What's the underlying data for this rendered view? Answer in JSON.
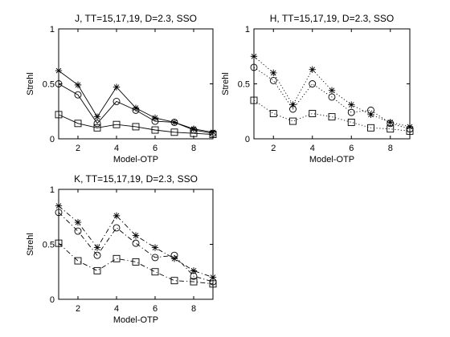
{
  "chart_data": [
    {
      "type": "line",
      "title": "J, TT=15,17,19, D=2.3, SSO",
      "xlabel": "Model-OTP",
      "ylabel": "Strehl",
      "xlim": [
        1,
        9
      ],
      "ylim": [
        0,
        1
      ],
      "xticks": [
        "2",
        "4",
        "6",
        "8"
      ],
      "yticks": [
        "0",
        "0.5",
        "1"
      ],
      "grid": false,
      "x": [
        1,
        2,
        3,
        4,
        5,
        6,
        7,
        8,
        9
      ],
      "series": [
        {
          "marker": "star",
          "line": "solid",
          "values": [
            0.62,
            0.49,
            0.2,
            0.47,
            0.28,
            0.19,
            0.15,
            0.09,
            0.06
          ]
        },
        {
          "marker": "circle",
          "line": "solid",
          "values": [
            0.5,
            0.4,
            0.14,
            0.34,
            0.26,
            0.16,
            0.15,
            0.08,
            0.05
          ]
        },
        {
          "marker": "square",
          "line": "solid",
          "values": [
            0.22,
            0.14,
            0.1,
            0.13,
            0.11,
            0.08,
            0.06,
            0.05,
            0.04
          ]
        }
      ]
    },
    {
      "type": "line",
      "title": "H, TT=15,17,19, D=2.3, SSO",
      "xlabel": "Model-OTP",
      "ylabel": "Strehl",
      "xlim": [
        1,
        9
      ],
      "ylim": [
        0,
        1
      ],
      "xticks": [
        "2",
        "4",
        "6",
        "8"
      ],
      "yticks": [
        "0",
        "0.5",
        "1"
      ],
      "grid": false,
      "x": [
        1,
        2,
        3,
        4,
        5,
        6,
        7,
        8,
        9
      ],
      "series": [
        {
          "marker": "star",
          "line": "dotted",
          "values": [
            0.75,
            0.6,
            0.31,
            0.63,
            0.44,
            0.31,
            0.22,
            0.15,
            0.11
          ]
        },
        {
          "marker": "circle",
          "line": "dotted",
          "values": [
            0.65,
            0.53,
            0.27,
            0.5,
            0.38,
            0.24,
            0.26,
            0.14,
            0.09
          ]
        },
        {
          "marker": "square",
          "line": "dotted",
          "values": [
            0.35,
            0.23,
            0.16,
            0.23,
            0.2,
            0.15,
            0.1,
            0.09,
            0.07
          ]
        }
      ]
    },
    {
      "type": "line",
      "title": "K, TT=15,17,19, D=2.3, SSO",
      "xlabel": "Model-OTP",
      "ylabel": "Strehl",
      "xlim": [
        1,
        9
      ],
      "ylim": [
        0,
        1
      ],
      "xticks": [
        "2",
        "4",
        "6",
        "8"
      ],
      "yticks": [
        "0",
        "0.5",
        "1"
      ],
      "grid": false,
      "x": [
        1,
        2,
        3,
        4,
        5,
        6,
        7,
        8,
        9
      ],
      "series": [
        {
          "marker": "star",
          "line": "dashdot",
          "values": [
            0.85,
            0.7,
            0.47,
            0.76,
            0.58,
            0.47,
            0.37,
            0.26,
            0.2
          ]
        },
        {
          "marker": "circle",
          "line": "dashdot",
          "values": [
            0.79,
            0.62,
            0.4,
            0.65,
            0.51,
            0.38,
            0.4,
            0.21,
            0.16
          ]
        },
        {
          "marker": "square",
          "line": "dashdot",
          "values": [
            0.51,
            0.35,
            0.26,
            0.37,
            0.34,
            0.25,
            0.17,
            0.16,
            0.14
          ]
        }
      ]
    }
  ]
}
